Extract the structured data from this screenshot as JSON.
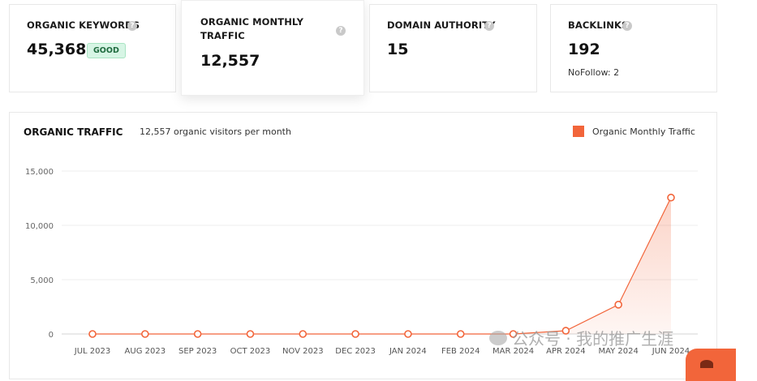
{
  "cards": [
    {
      "label_line1": "ORGANIC KEYWORDS",
      "label_line2": "",
      "value": "45,368",
      "badge": "GOOD",
      "sub": ""
    },
    {
      "label_line1": "ORGANIC MONTHLY",
      "label_line2": "TRAFFIC",
      "value": "12,557",
      "badge": "",
      "sub": ""
    },
    {
      "label_line1": "DOMAIN AUTHORITY",
      "label_line2": "",
      "value": "15",
      "badge": "",
      "sub": ""
    },
    {
      "label_line1": "BACKLINKS",
      "label_line2": "",
      "value": "192",
      "badge": "",
      "sub": "NoFollow: 2"
    }
  ],
  "help_glyph": "?",
  "chart_section": {
    "title": "ORGANIC TRAFFIC",
    "subtitle": "12,557 organic visitors per month",
    "legend_label": "Organic Monthly Traffic"
  },
  "chart_data": {
    "type": "area",
    "title": "ORGANIC TRAFFIC",
    "categories": [
      "JUL 2023",
      "AUG 2023",
      "SEP 2023",
      "OCT 2023",
      "NOV 2023",
      "DEC 2023",
      "JAN 2024",
      "FEB 2024",
      "MAR 2024",
      "APR 2024",
      "MAY 2024",
      "JUN 2024"
    ],
    "series": [
      {
        "name": "Organic Monthly Traffic",
        "values": [
          0,
          0,
          0,
          0,
          0,
          0,
          0,
          0,
          0,
          300,
          2700,
          12557
        ],
        "color": "#f2653a"
      }
    ],
    "yticks": [
      0,
      5000,
      10000,
      15000
    ],
    "ytick_labels": [
      "0",
      "5,000",
      "10,000",
      "15,000"
    ],
    "ylim": [
      0,
      15000
    ],
    "grid": true,
    "legend": "top-right"
  },
  "watermark": "公众号 · 我的推广生涯",
  "colors": {
    "accent": "#f2653a",
    "badge_bg": "#d7f5e5",
    "badge_text": "#1f6b3f"
  }
}
